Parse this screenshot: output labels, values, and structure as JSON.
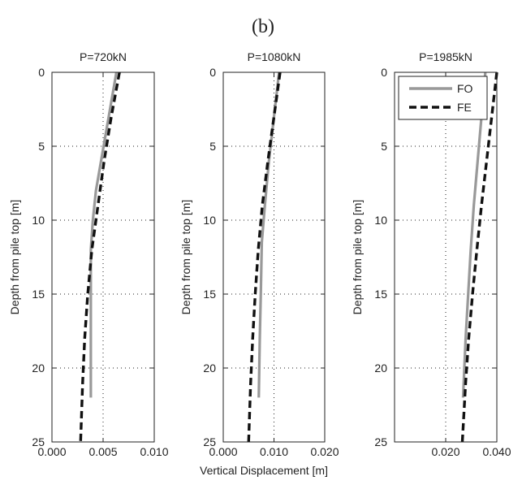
{
  "figure": {
    "panel_label": "(b)",
    "shared_xlabel": "Vertical Displacement [m]"
  },
  "chart_data": [
    {
      "type": "line",
      "title": "P=720kN",
      "xlabel": "",
      "ylabel": "Depth from pile top [m]",
      "xlim": [
        0,
        0.01
      ],
      "ylim": [
        0,
        25
      ],
      "y_inverted": true,
      "grid": "dotted",
      "x_ticks": [
        "0.000",
        "0.005",
        "0.010"
      ],
      "y_ticks": [
        "0",
        "5",
        "10",
        "15",
        "20",
        "25"
      ],
      "series": [
        {
          "name": "FO",
          "color": "#999999",
          "dash": "solid",
          "points": [
            [
              0.0063,
              0
            ],
            [
              0.0058,
              2
            ],
            [
              0.0053,
              4
            ],
            [
              0.0048,
              6
            ],
            [
              0.0043,
              8
            ],
            [
              0.004,
              10
            ],
            [
              0.0038,
              12
            ],
            [
              0.0038,
              16
            ],
            [
              0.0038,
              22
            ]
          ]
        },
        {
          "name": "FE",
          "color": "#111111",
          "dash": "dashed",
          "points": [
            [
              0.0066,
              0
            ],
            [
              0.0058,
              3
            ],
            [
              0.0051,
              6
            ],
            [
              0.0045,
              9
            ],
            [
              0.0039,
              12
            ],
            [
              0.0035,
              15
            ],
            [
              0.0032,
              18
            ],
            [
              0.003,
              21
            ],
            [
              0.0028,
              25
            ]
          ]
        }
      ]
    },
    {
      "type": "line",
      "title": "P=1080kN",
      "xlabel": "Vertical Displacement [m]",
      "ylabel": "Depth from pile top [m]",
      "xlim": [
        0,
        0.02
      ],
      "ylim": [
        0,
        25
      ],
      "y_inverted": true,
      "grid": "dotted",
      "x_ticks": [
        "0.000",
        "0.010",
        "0.020"
      ],
      "y_ticks": [
        "0",
        "5",
        "10",
        "15",
        "20",
        "25"
      ],
      "series": [
        {
          "name": "FO",
          "color": "#999999",
          "dash": "solid",
          "points": [
            [
              0.011,
              0
            ],
            [
              0.01,
              3
            ],
            [
              0.009,
              6
            ],
            [
              0.0082,
              9
            ],
            [
              0.0076,
              11.5
            ],
            [
              0.0074,
              15
            ],
            [
              0.0072,
              18
            ],
            [
              0.007,
              22
            ]
          ]
        },
        {
          "name": "FE",
          "color": "#111111",
          "dash": "dashed",
          "points": [
            [
              0.0112,
              0
            ],
            [
              0.01,
              3
            ],
            [
              0.0088,
              6
            ],
            [
              0.0077,
              9
            ],
            [
              0.0069,
              12
            ],
            [
              0.0063,
              15
            ],
            [
              0.0058,
              18
            ],
            [
              0.0054,
              21
            ],
            [
              0.005,
              25
            ]
          ]
        }
      ]
    },
    {
      "type": "line",
      "title": "P=1985kN",
      "xlabel": "",
      "ylabel": "Depth from pile top [m]",
      "xlim": [
        0,
        0.04
      ],
      "ylim": [
        0,
        25
      ],
      "y_inverted": true,
      "grid": "dotted",
      "x_ticks": [
        "",
        "0.020",
        "0.040"
      ],
      "y_ticks": [
        "0",
        "5",
        "10",
        "15",
        "20",
        "25"
      ],
      "legend": {
        "position": "top-right"
      },
      "series": [
        {
          "name": "FO",
          "color": "#999999",
          "dash": "solid",
          "points": [
            [
              0.0355,
              0
            ],
            [
              0.034,
              3
            ],
            [
              0.0325,
              6
            ],
            [
              0.031,
              9
            ],
            [
              0.0298,
              12
            ],
            [
              0.0288,
              15
            ],
            [
              0.0278,
              18
            ],
            [
              0.0268,
              22
            ]
          ]
        },
        {
          "name": "FE",
          "color": "#111111",
          "dash": "dashed",
          "points": [
            [
              0.04,
              0
            ],
            [
              0.038,
              3
            ],
            [
              0.036,
              6
            ],
            [
              0.034,
              9
            ],
            [
              0.0322,
              12
            ],
            [
              0.0305,
              15
            ],
            [
              0.029,
              18
            ],
            [
              0.0278,
              21
            ],
            [
              0.0265,
              25
            ]
          ]
        }
      ]
    }
  ]
}
